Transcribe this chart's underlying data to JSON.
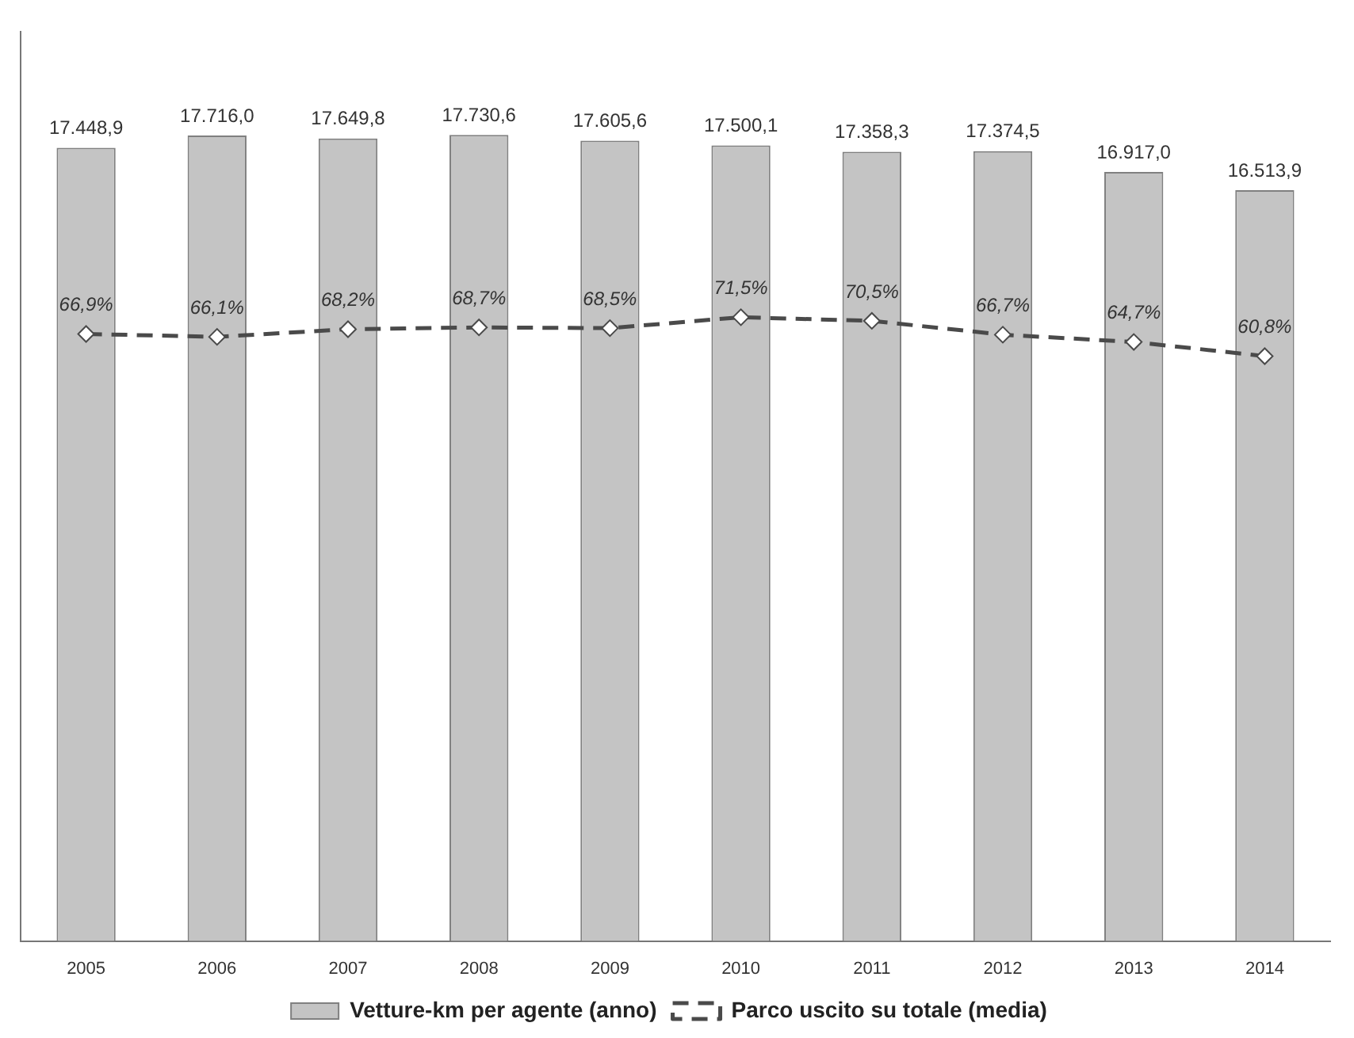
{
  "chart_data": {
    "type": "bar",
    "categories": [
      "2005",
      "2006",
      "2007",
      "2008",
      "2009",
      "2010",
      "2011",
      "2012",
      "2013",
      "2014"
    ],
    "series": [
      {
        "name": "Vetture-km per agente (anno)",
        "type": "bar",
        "color": "#c4c4c4",
        "values": [
          17448.9,
          17716.0,
          17649.8,
          17730.6,
          17605.6,
          17500.1,
          17358.3,
          17374.5,
          16917.0,
          16513.9
        ],
        "value_labels": [
          "17.448,9",
          "17.716,0",
          "17.649,8",
          "17.730,6",
          "17.605,6",
          "17.500,1",
          "17.358,3",
          "17.374,5",
          "16.917,0",
          "16.513,9"
        ]
      },
      {
        "name": "Parco uscito su totale (media)",
        "type": "line",
        "axis": "y2",
        "color": "#4a4a4a",
        "line_style": "dashed",
        "marker": "diamond",
        "values": [
          66.9,
          66.1,
          68.2,
          68.7,
          68.5,
          71.5,
          70.5,
          66.7,
          64.7,
          60.8
        ],
        "value_labels": [
          "66,9%",
          "66,1%",
          "68,2%",
          "68,7%",
          "68,5%",
          "71,5%",
          "70,5%",
          "66,7%",
          "64,7%",
          "60,8%"
        ]
      }
    ],
    "grid": false,
    "legend": "bottom",
    "tick_labels": "x"
  }
}
